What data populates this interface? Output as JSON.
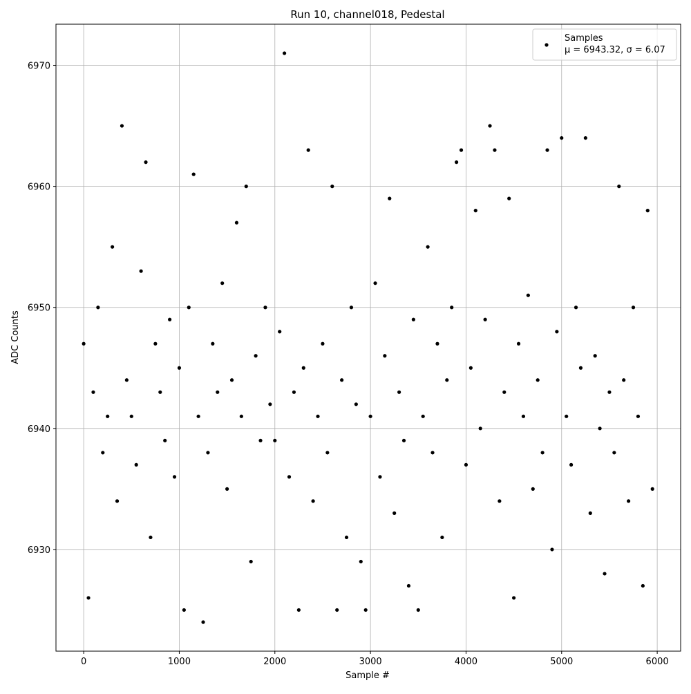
{
  "chart_data": {
    "type": "scatter",
    "title": "Run 10, channel018, Pedestal",
    "x_label": "Sample #",
    "y_label": "ADC Counts",
    "xlim": [
      -290,
      6245
    ],
    "ylim": [
      6921.6,
      6973.4
    ],
    "xticks": [
      0,
      1000,
      2000,
      3000,
      4000,
      5000,
      6000
    ],
    "yticks": [
      6930,
      6940,
      6950,
      6960,
      6970
    ],
    "grid": true,
    "legend_position": "upper right",
    "legend_stats": "μ = 6943.32, σ = 6.07",
    "series": [
      {
        "name": "Samples",
        "color": "#000000",
        "x": [
          0,
          50,
          100,
          150,
          200,
          250,
          300,
          350,
          400,
          450,
          500,
          550,
          600,
          650,
          700,
          750,
          800,
          850,
          900,
          950,
          1000,
          1050,
          1100,
          1150,
          1200,
          1250,
          1300,
          1350,
          1400,
          1450,
          1500,
          1550,
          1600,
          1650,
          1700,
          1750,
          1800,
          1850,
          1900,
          1950,
          2000,
          2050,
          2100,
          2150,
          2200,
          2250,
          2300,
          2350,
          2400,
          2450,
          2500,
          2550,
          2600,
          2650,
          2700,
          2750,
          2800,
          2850,
          2900,
          2950,
          3000,
          3050,
          3100,
          3150,
          3200,
          3250,
          3300,
          3350,
          3400,
          3450,
          3500,
          3550,
          3600,
          3650,
          3700,
          3750,
          3800,
          3850,
          3900,
          3950,
          4000,
          4050,
          4100,
          4150,
          4200,
          4250,
          4300,
          4350,
          4400,
          4450,
          4500,
          4550,
          4600,
          4650,
          4700,
          4750,
          4800,
          4850,
          4900,
          4950,
          5000,
          5050,
          5100,
          5150,
          5200,
          5250,
          5300,
          5350,
          5400,
          5450,
          5500,
          5550,
          5600,
          5650,
          5700,
          5750,
          5800,
          5850,
          5900,
          5950
        ],
        "values": [
          6947,
          6926,
          6943,
          6950,
          6938,
          6941,
          6955,
          6934,
          6965,
          6944,
          6941,
          6937,
          6953,
          6962,
          6931,
          6947,
          6943,
          6939,
          6949,
          6936,
          6945,
          6925,
          6950,
          6961,
          6941,
          6924,
          6938,
          6947,
          6943,
          6952,
          6935,
          6944,
          6957,
          6941,
          6960,
          6929,
          6946,
          6939,
          6950,
          6942,
          6939,
          6948,
          6971,
          6936,
          6943,
          6925,
          6945,
          6963,
          6934,
          6941,
          6947,
          6938,
          6960,
          6925,
          6944,
          6931,
          6950,
          6942,
          6929,
          6925,
          6941,
          6952,
          6936,
          6946,
          6959,
          6933,
          6943,
          6939,
          6927,
          6949,
          6925,
          6941,
          6955,
          6938,
          6947,
          6931,
          6944,
          6950,
          6962,
          6963,
          6937,
          6945,
          6958,
          6940,
          6949,
          6965,
          6963,
          6934,
          6943,
          6959,
          6926,
          6947,
          6941,
          6951,
          6935,
          6944,
          6938,
          6963,
          6930,
          6948,
          6964,
          6941,
          6937,
          6950,
          6945,
          6964,
          6933,
          6946,
          6940,
          6928,
          6943,
          6938,
          6960,
          6944,
          6934,
          6950,
          6941,
          6927,
          6958,
          6935
        ]
      }
    ]
  }
}
